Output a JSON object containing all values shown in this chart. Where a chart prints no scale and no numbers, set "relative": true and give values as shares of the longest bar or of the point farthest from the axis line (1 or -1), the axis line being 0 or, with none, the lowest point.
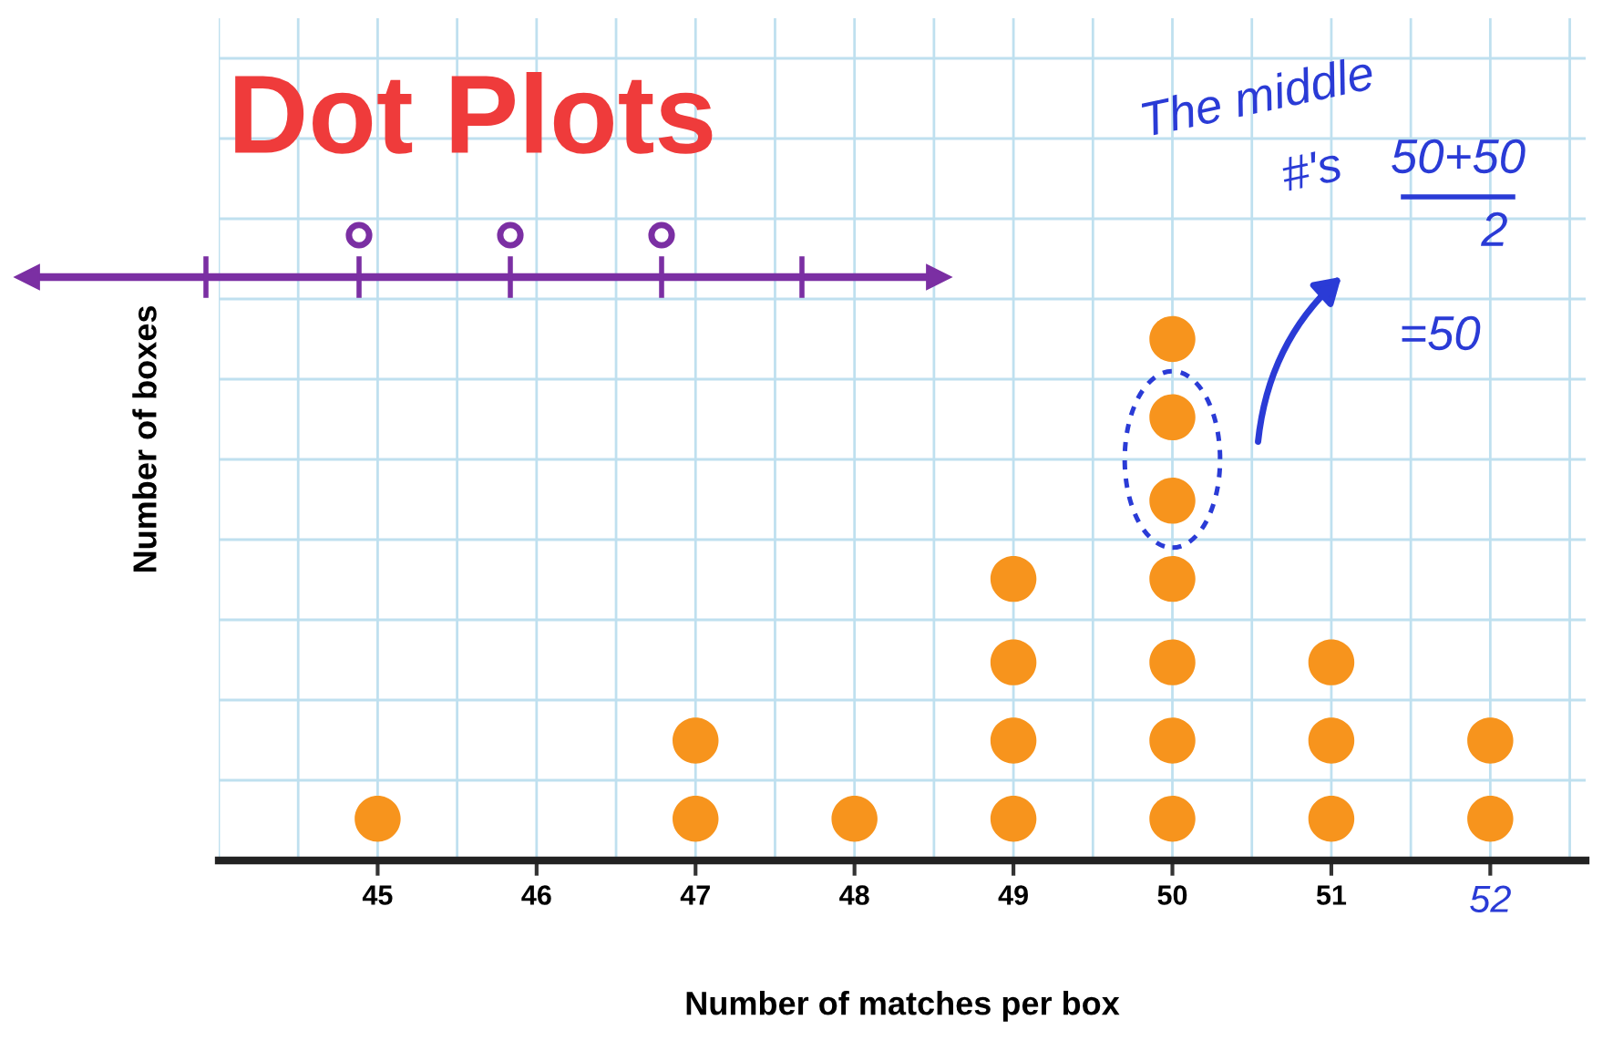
{
  "chart_data": {
    "type": "scatter",
    "title": "Dot Plots",
    "xlabel": "Number of matches per box",
    "ylabel": "Number of boxes",
    "categories": [
      "45",
      "46",
      "47",
      "48",
      "49",
      "50",
      "51",
      "52"
    ],
    "relative": true,
    "grid": true,
    "marker": "circle",
    "series": [
      {
        "color": "#f7941d",
        "x": [
          "45",
          "47",
          "47",
          "48",
          "49",
          "49",
          "49",
          "49",
          "50",
          "50",
          "50",
          "50",
          "50",
          "50",
          "50",
          "51",
          "51",
          "51",
          "52",
          "52"
        ],
        "values": [
          0.08,
          0.08,
          0.23,
          0.08,
          0.08,
          0.23,
          0.38,
          0.54,
          0.08,
          0.23,
          0.38,
          0.54,
          0.69,
          0.85,
          1.0,
          0.08,
          0.23,
          0.38,
          0.08,
          0.23
        ]
      }
    ],
    "annotations": [
      "The middle",
      "#'s",
      "50+50",
      "2",
      "=50"
    ]
  }
}
